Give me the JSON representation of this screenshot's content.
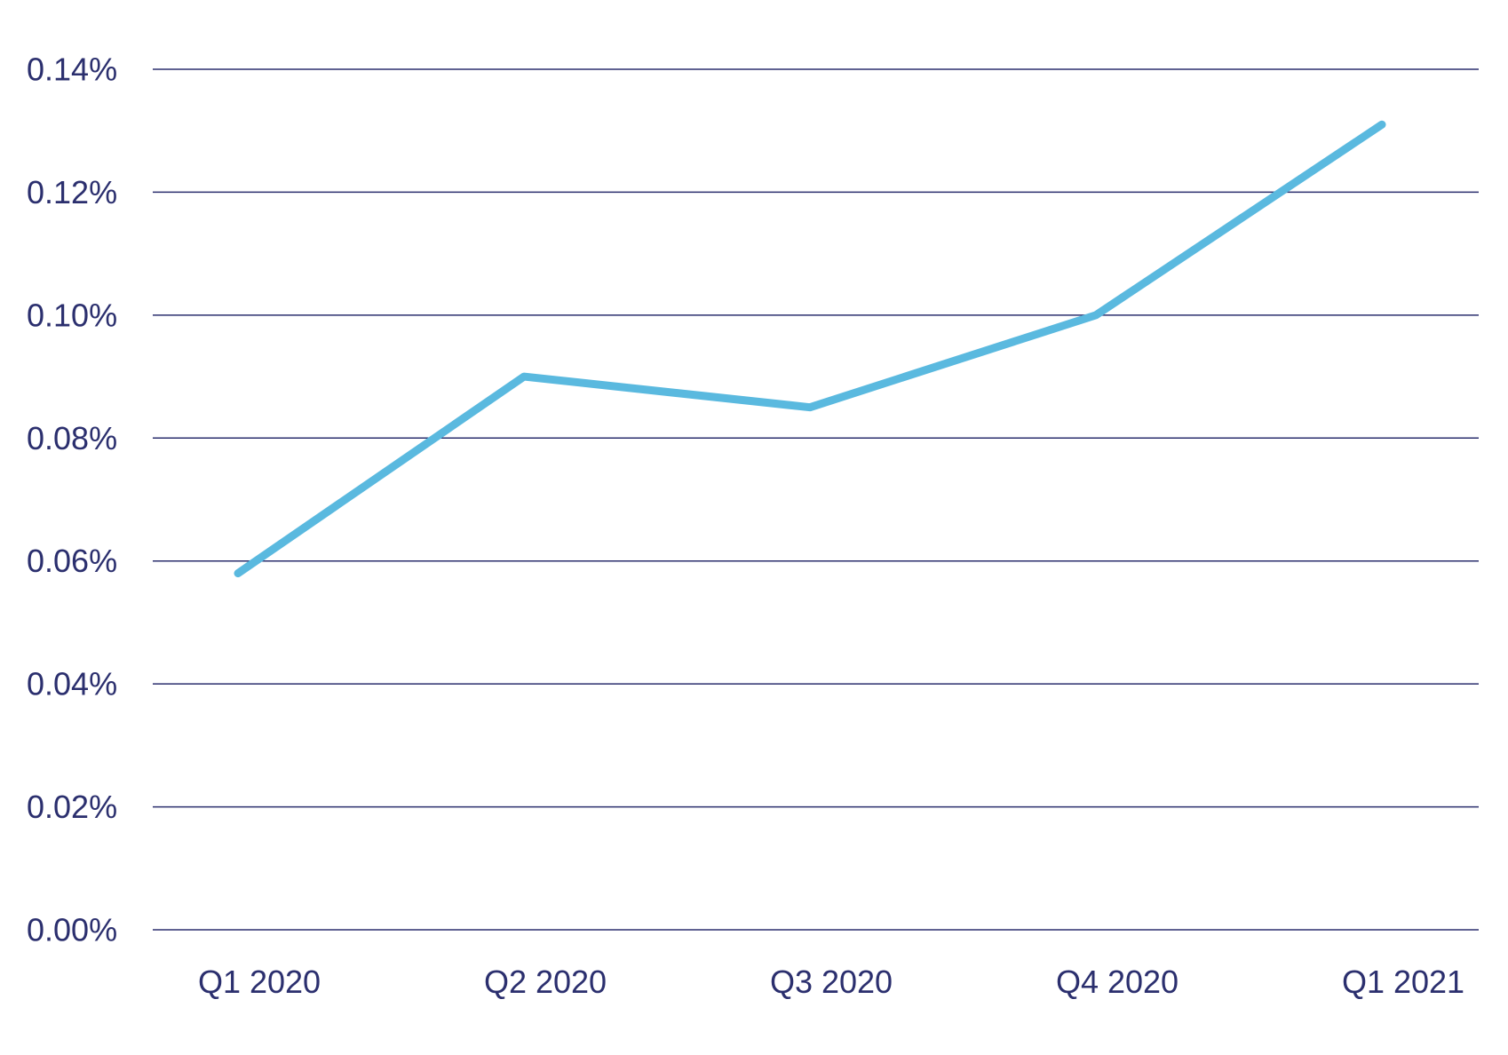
{
  "chart_data": {
    "type": "line",
    "title": "",
    "xlabel": "",
    "ylabel": "",
    "categories": [
      "Q1 2020",
      "Q2 2020",
      "Q3 2020",
      "Q4 2020",
      "Q1 2021"
    ],
    "series": [
      {
        "values": [
          0.058,
          0.09,
          0.085,
          0.1,
          0.131
        ],
        "color": "#5ab9df"
      }
    ],
    "ylim": [
      0,
      0.14
    ],
    "yticks": [
      0.0,
      0.02,
      0.04,
      0.06,
      0.08,
      0.1,
      0.12,
      0.14
    ],
    "ytick_labels": [
      "0.00%",
      "0.02%",
      "0.04%",
      "0.06%",
      "0.08%",
      "0.10%",
      "0.12%",
      "0.14%"
    ],
    "grid": true,
    "legend": "none",
    "colors": {
      "axis_text": "#2b2f6e",
      "gridline": "#2b2f6e",
      "line": "#5ab9df"
    }
  }
}
